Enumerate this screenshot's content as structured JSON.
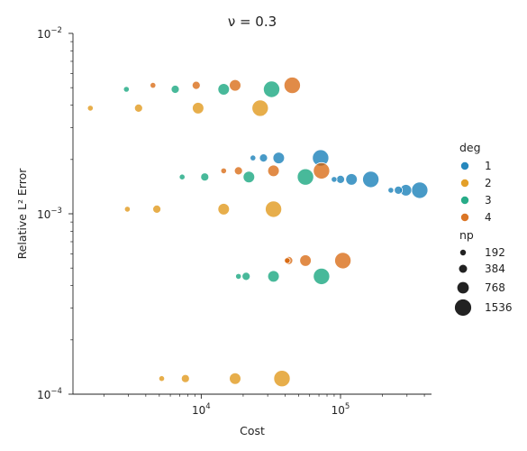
{
  "chart_data": {
    "type": "scatter",
    "title": "ν = 0.3",
    "xlabel": "Cost",
    "ylabel": "Relative L² Error",
    "xscale": "log",
    "yscale": "log",
    "xlim": [
      1200,
      450000
    ],
    "ylim": [
      0.0001,
      0.01
    ],
    "x_ticks": [
      {
        "value": 10000,
        "base": "10",
        "exp": "4"
      },
      {
        "value": 100000,
        "base": "10",
        "exp": "5"
      }
    ],
    "y_ticks": [
      {
        "value": 0.0001,
        "base": "10",
        "exp": "−4"
      },
      {
        "value": 0.001,
        "base": "10",
        "exp": "−3"
      },
      {
        "value": 0.01,
        "base": "10",
        "exp": "−2"
      }
    ],
    "grid": false,
    "legend_position": "right",
    "legend_hue_title": "deg",
    "legend_size_title": "np",
    "hue_levels": [
      {
        "label": "1",
        "color": "#0173b2"
      },
      {
        "label": "2",
        "color": "#de8f05"
      },
      {
        "label": "3",
        "color": "#029e73"
      },
      {
        "label": "4",
        "color": "#d55e00"
      }
    ],
    "size_levels": [
      {
        "label": "192",
        "np": 192
      },
      {
        "label": "384",
        "np": 384
      },
      {
        "label": "768",
        "np": 768
      },
      {
        "label": "1536",
        "np": 1536
      }
    ],
    "series": [
      {
        "name": "1",
        "points": [
          {
            "x": 23500,
            "y": 0.00204,
            "np": 192
          },
          {
            "x": 28000,
            "y": 0.00204,
            "np": 384
          },
          {
            "x": 36000,
            "y": 0.00204,
            "np": 768
          },
          {
            "x": 72000,
            "y": 0.00204,
            "np": 1536
          },
          {
            "x": 90000,
            "y": 0.00155,
            "np": 192
          },
          {
            "x": 100000,
            "y": 0.00155,
            "np": 384
          },
          {
            "x": 120000,
            "y": 0.00155,
            "np": 768
          },
          {
            "x": 165000,
            "y": 0.00155,
            "np": 1536
          },
          {
            "x": 230000,
            "y": 0.00135,
            "np": 192
          },
          {
            "x": 260000,
            "y": 0.00135,
            "np": 384
          },
          {
            "x": 295000,
            "y": 0.00135,
            "np": 768
          },
          {
            "x": 370000,
            "y": 0.00135,
            "np": 1536
          }
        ]
      },
      {
        "name": "2",
        "points": [
          {
            "x": 1600,
            "y": 0.00385,
            "np": 192
          },
          {
            "x": 3550,
            "y": 0.00385,
            "np": 384
          },
          {
            "x": 9500,
            "y": 0.00385,
            "np": 768
          },
          {
            "x": 26500,
            "y": 0.00385,
            "np": 1536
          },
          {
            "x": 2950,
            "y": 0.00106,
            "np": 192
          },
          {
            "x": 4800,
            "y": 0.00106,
            "np": 384
          },
          {
            "x": 14500,
            "y": 0.00106,
            "np": 768
          },
          {
            "x": 33000,
            "y": 0.00106,
            "np": 1536
          },
          {
            "x": 5200,
            "y": 0.000122,
            "np": 192
          },
          {
            "x": 7700,
            "y": 0.000122,
            "np": 384
          },
          {
            "x": 17500,
            "y": 0.000122,
            "np": 768
          },
          {
            "x": 38000,
            "y": 0.000122,
            "np": 1536
          }
        ]
      },
      {
        "name": "3",
        "points": [
          {
            "x": 2900,
            "y": 0.0049,
            "np": 192
          },
          {
            "x": 6500,
            "y": 0.0049,
            "np": 384
          },
          {
            "x": 14500,
            "y": 0.0049,
            "np": 768
          },
          {
            "x": 32000,
            "y": 0.0049,
            "np": 1536
          },
          {
            "x": 7300,
            "y": 0.0016,
            "np": 192
          },
          {
            "x": 10600,
            "y": 0.0016,
            "np": 384
          },
          {
            "x": 22000,
            "y": 0.0016,
            "np": 768
          },
          {
            "x": 56000,
            "y": 0.0016,
            "np": 1536
          },
          {
            "x": 18500,
            "y": 0.00045,
            "np": 192
          },
          {
            "x": 21000,
            "y": 0.00045,
            "np": 384
          },
          {
            "x": 33000,
            "y": 0.00045,
            "np": 768
          },
          {
            "x": 73000,
            "y": 0.00045,
            "np": 1536
          }
        ]
      },
      {
        "name": "4",
        "points": [
          {
            "x": 4500,
            "y": 0.00515,
            "np": 192
          },
          {
            "x": 9200,
            "y": 0.00515,
            "np": 384
          },
          {
            "x": 17500,
            "y": 0.00515,
            "np": 768
          },
          {
            "x": 45000,
            "y": 0.00515,
            "np": 1536
          },
          {
            "x": 14500,
            "y": 0.00173,
            "np": 192
          },
          {
            "x": 18500,
            "y": 0.00173,
            "np": 384
          },
          {
            "x": 33000,
            "y": 0.00173,
            "np": 768
          },
          {
            "x": 73000,
            "y": 0.00173,
            "np": 1536
          },
          {
            "x": 41500,
            "y": 0.00055,
            "np": 192
          },
          {
            "x": 42500,
            "y": 0.00055,
            "np": 384
          },
          {
            "x": 56000,
            "y": 0.00055,
            "np": 768
          },
          {
            "x": 104000,
            "y": 0.00055,
            "np": 1536
          }
        ]
      }
    ]
  }
}
